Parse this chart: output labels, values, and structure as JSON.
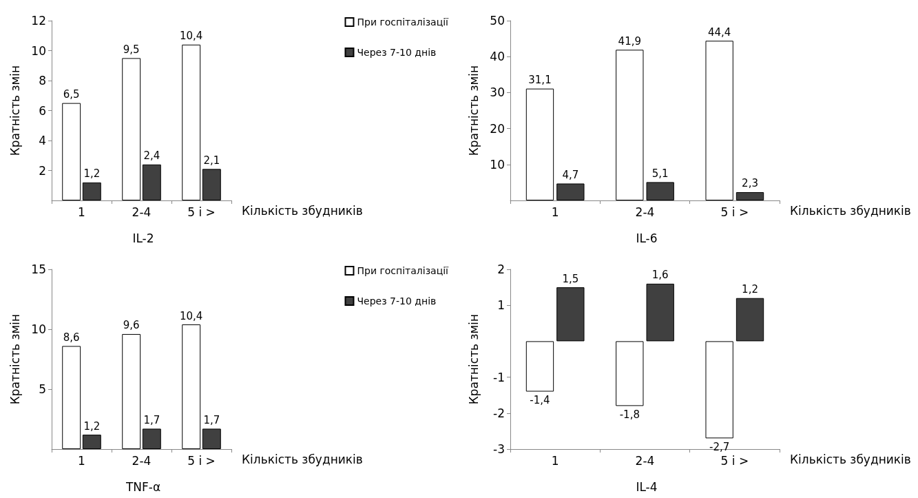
{
  "chart_data": [
    {
      "type": "bar",
      "title": "IL-2",
      "xlabel": "Кількість збудників",
      "ylabel": "Кратність змін",
      "categories": [
        "1",
        "2-4",
        "5 і >"
      ],
      "ylim": [
        0,
        12
      ],
      "yticks": [
        2,
        4,
        6,
        8,
        10,
        12
      ],
      "grid": false,
      "legend": "top right",
      "series": [
        {
          "name": "При госпіталізації",
          "color": "#ffffff",
          "values": [
            6.5,
            9.5,
            10.4
          ],
          "value_labels": [
            "6,5",
            "9,5",
            "10,4"
          ]
        },
        {
          "name": "Через 7-10 днів",
          "color": "#404040",
          "values": [
            1.2,
            2.4,
            2.1
          ],
          "value_labels": [
            "1,2",
            "2,4",
            "2,1"
          ]
        }
      ]
    },
    {
      "type": "bar",
      "title": "IL-6",
      "xlabel": "Кількість збудників",
      "ylabel": "Кратність змін",
      "categories": [
        "1",
        "2-4",
        "5 і >"
      ],
      "ylim": [
        0,
        50
      ],
      "yticks": [
        10,
        20,
        30,
        40,
        50
      ],
      "grid": false,
      "series": [
        {
          "color": "#ffffff",
          "values": [
            31.1,
            41.9,
            44.4
          ],
          "value_labels": [
            "31,1",
            "41,9",
            "44,4"
          ]
        },
        {
          "color": "#404040",
          "values": [
            4.7,
            5.1,
            2.3
          ],
          "value_labels": [
            "4,7",
            "5,1",
            "2,3"
          ]
        }
      ]
    },
    {
      "type": "bar",
      "title": "TNF-α",
      "xlabel": "Кількість збудників",
      "ylabel": "Кратність змін",
      "categories": [
        "1",
        "2-4",
        "5 і >"
      ],
      "ylim": [
        0,
        15
      ],
      "yticks": [
        5,
        10,
        15
      ],
      "grid": false,
      "legend": "top right",
      "series": [
        {
          "name": "При госпіталізації",
          "color": "#ffffff",
          "values": [
            8.6,
            9.6,
            10.4
          ],
          "value_labels": [
            "8,6",
            "9,6",
            "10,4"
          ]
        },
        {
          "name": "Через 7-10 днів",
          "color": "#404040",
          "values": [
            1.2,
            1.7,
            1.7
          ],
          "value_labels": [
            "1,2",
            "1,7",
            "1,7"
          ]
        }
      ]
    },
    {
      "type": "bar",
      "title": "IL-4",
      "xlabel": "Кількість збудників",
      "ylabel": "Кратність змін",
      "categories": [
        "1",
        "2-4",
        "5 і >"
      ],
      "ylim": [
        -3,
        2
      ],
      "yticks": [
        -3,
        -2,
        -1,
        1,
        2
      ],
      "grid": false,
      "series": [
        {
          "color": "#ffffff",
          "values": [
            -1.4,
            -1.8,
            -2.7
          ],
          "value_labels": [
            "-1,4",
            "-1,8",
            "-2,7"
          ]
        },
        {
          "color": "#404040",
          "values": [
            1.5,
            1.6,
            1.2
          ],
          "value_labels": [
            "1,5",
            "1,6",
            "1,2"
          ]
        }
      ]
    }
  ]
}
